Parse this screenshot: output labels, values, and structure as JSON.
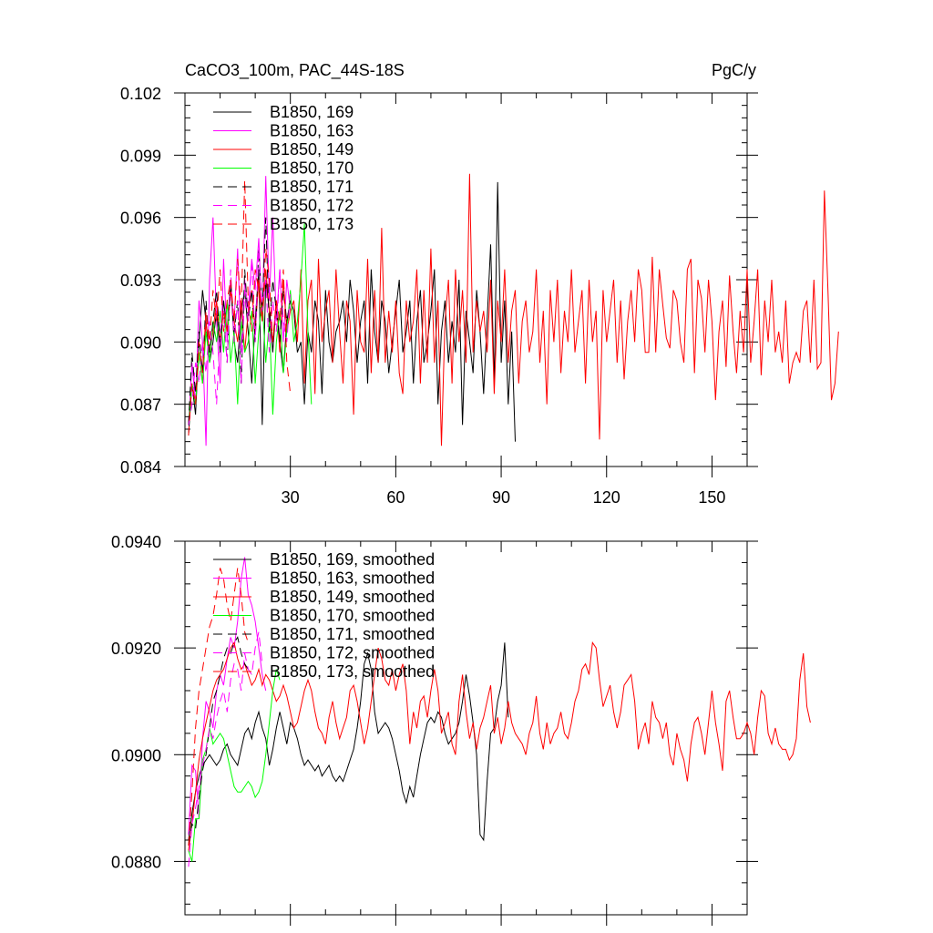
{
  "colors": {
    "black": "#000000",
    "magenta": "#ff00ff",
    "red": "#ff0000",
    "green": "#00ff00"
  },
  "chart_data": [
    {
      "type": "line",
      "title": "CaCO3_100m, PAC_44S-18S",
      "units": "PgC/y",
      "xlim": [
        0,
        160
      ],
      "ylim": [
        0.084,
        0.102
      ],
      "xticks": [
        30,
        60,
        90,
        120,
        150
      ],
      "xtick_labels": [
        "30",
        "60",
        "90",
        "120",
        "150"
      ],
      "yticks": [
        0.084,
        0.087,
        0.09,
        0.093,
        0.096,
        0.099,
        0.102
      ],
      "ytick_labels": [
        "0.084",
        "0.087",
        "0.090",
        "0.093",
        "0.096",
        "0.099",
        "0.102"
      ],
      "series": [
        {
          "name": "B1850, 169",
          "color": "black",
          "dash": false,
          "values": [
            0.0855,
            0.088,
            0.0865,
            0.09,
            0.0925,
            0.091,
            0.089,
            0.09,
            0.0915,
            0.0895,
            0.092,
            0.0905,
            0.093,
            0.09,
            0.089,
            0.0915,
            0.0925,
            0.0905,
            0.088,
            0.091,
            0.0935,
            0.086,
            0.093,
            0.0915,
            0.0895,
            0.092,
            0.09,
            0.0885,
            0.091,
            0.092,
            0.0915,
            0.0895,
            0.09,
            0.087,
            0.0905,
            0.0895,
            0.092,
            0.091,
            0.0875,
            0.0925,
            0.09,
            0.089,
            0.0905,
            0.091,
            0.092,
            0.09,
            0.093,
            0.0915,
            0.089,
            0.091,
            0.092,
            0.088,
            0.0935,
            0.0905,
            0.089,
            0.092,
            0.091,
            0.0885,
            0.09,
            0.0915,
            0.093,
            0.0895,
            0.0905,
            0.092,
            0.088,
            0.091,
            0.0925,
            0.089,
            0.09,
            0.0915,
            0.0935,
            0.087,
            0.0905,
            0.092,
            0.089,
            0.091,
            0.0895,
            0.093,
            0.086,
            0.0915,
            0.09,
            0.0885,
            0.0925,
            0.0905,
            0.0875,
            0.091,
            0.0947,
            0.088,
            0.0977,
            0.089,
            0.092,
            0.087,
            0.0905,
            0.0852
          ]
        },
        {
          "name": "B1850, 163",
          "color": "magenta",
          "dash": false,
          "values": [
            0.086,
            0.089,
            0.087,
            0.092,
            0.09,
            0.085,
            0.093,
            0.096,
            0.091,
            0.088,
            0.094,
            0.09,
            0.0925,
            0.091,
            0.0945,
            0.0895,
            0.093,
            0.0915,
            0.094,
            0.0925,
            0.095,
            0.091,
            0.098,
            0.092,
            0.096,
            0.091,
            0.0935,
            0.09,
            0.093,
            0.0915
          ]
        },
        {
          "name": "B1850, 149",
          "color": "red",
          "dash": false,
          "values": [
            0.086,
            0.088,
            0.087,
            0.0895,
            0.088,
            0.091,
            0.0895,
            0.0905,
            0.092,
            0.09,
            0.0915,
            0.0905,
            0.0925,
            0.091,
            0.09,
            0.092,
            0.0895,
            0.0915,
            0.0925,
            0.0905,
            0.093,
            0.091,
            0.0935,
            0.0915,
            0.09,
            0.092,
            0.0895,
            0.093,
            0.0905,
            0.0915,
            0.092,
            0.09,
            0.0935,
            0.088,
            0.092,
            0.093,
            0.0875,
            0.094,
            0.09,
            0.0915,
            0.0925,
            0.089,
            0.0935,
            0.0905,
            0.088,
            0.092,
            0.091,
            0.0865,
            0.0925,
            0.09,
            0.0895,
            0.094,
            0.0885,
            0.0925,
            0.089,
            0.0955,
            0.089,
            0.0915,
            0.0895,
            0.092,
            0.0885,
            0.0875,
            0.092,
            0.09,
            0.091,
            0.0935,
            0.088,
            0.0925,
            0.089,
            0.0945,
            0.089,
            0.092,
            0.085,
            0.091,
            0.093,
            0.088,
            0.0935,
            0.09,
            0.0925,
            0.089,
            0.0981,
            0.0895,
            0.092,
            0.0905,
            0.0915,
            0.0895,
            0.093,
            0.0875,
            0.092,
            0.09,
            0.0935,
            0.089,
            0.0915,
            0.0925,
            0.088,
            0.091,
            0.092,
            0.0895,
            0.0905,
            0.0935,
            0.089,
            0.0915,
            0.087,
            0.0925,
            0.09,
            0.093,
            0.0885,
            0.0915,
            0.09,
            0.0935,
            0.0895,
            0.091,
            0.0925,
            0.088,
            0.093,
            0.09,
            0.0915,
            0.0853,
            0.0925,
            0.09,
            0.0915,
            0.093,
            0.089,
            0.092,
            0.0882,
            0.091,
            0.0925,
            0.09,
            0.0935,
            0.0925,
            0.0895,
            0.0895,
            0.0941,
            0.0895,
            0.0935,
            0.0918,
            0.0902,
            0.0897,
            0.0925,
            0.092,
            0.09,
            0.089,
            0.0935,
            0.094,
            0.0885,
            0.093,
            0.0921,
            0.0895,
            0.093,
            0.091,
            0.0872,
            0.0905,
            0.092,
            0.0888,
            0.0932,
            0.0905,
            0.0885,
            0.0915,
            0.0895,
            0.0935,
            0.089,
            0.091,
            0.0935,
            0.0884,
            0.092,
            0.09,
            0.093,
            0.0895,
            0.0905,
            0.089,
            0.092,
            0.088,
            0.089,
            0.0895,
            0.089,
            0.0915,
            0.092,
            0.089,
            0.093,
            0.0887,
            0.089,
            0.0973,
            0.0925,
            0.0872,
            0.088,
            0.0905
          ]
        },
        {
          "name": "B1850, 170",
          "color": "green",
          "dash": false,
          "values": [
            0.086,
            0.088,
            0.087,
            0.0895,
            0.088,
            0.0905,
            0.089,
            0.091,
            0.09,
            0.0915,
            0.0895,
            0.092,
            0.089,
            0.0905,
            0.087,
            0.091,
            0.0895,
            0.09,
            0.0915,
            0.088,
            0.0905,
            0.092,
            0.089,
            0.091,
            0.0865,
            0.09,
            0.0915,
            0.0885,
            0.0905,
            0.0925,
            0.09,
            0.091,
            0.093,
            0.0957,
            0.0905,
            0.087
          ]
        },
        {
          "name": "B1850, 171",
          "color": "black",
          "dash": true,
          "values": [
            0.086,
            0.0895,
            0.0875,
            0.0905,
            0.0885,
            0.092,
            0.0895,
            0.091,
            0.0925,
            0.09,
            0.0915,
            0.089,
            0.093,
            0.0905,
            0.092,
            0.088,
            0.0935,
            0.091,
            0.0925,
            0.09,
            0.0945,
            0.0915,
            0.096,
            0.0905,
            0.093,
            0.0915,
            0.09,
            0.0925,
            0.091,
            0.092
          ]
        },
        {
          "name": "B1850, 172",
          "color": "magenta",
          "dash": true,
          "values": [
            0.086,
            0.087,
            0.089,
            0.088,
            0.09,
            0.0885,
            0.091,
            0.0895,
            0.087,
            0.0905,
            0.0915,
            0.089,
            0.0935,
            0.09,
            0.092,
            0.088,
            0.0925,
            0.091,
            0.094,
            0.09,
            0.0945,
            0.0915,
            0.093,
            0.0895,
            0.092,
            0.0905,
            0.0935,
            0.091,
            0.09,
            0.0925
          ]
        },
        {
          "name": "B1850, 173",
          "color": "red",
          "dash": true,
          "values": [
            0.0855,
            0.088,
            0.087,
            0.09,
            0.0885,
            0.0915,
            0.09,
            0.0925,
            0.091,
            0.0935,
            0.0905,
            0.092,
            0.093,
            0.091,
            0.094,
            0.0915,
            0.0978,
            0.092,
            0.0905,
            0.0935,
            0.0925,
            0.091,
            0.0945,
            0.093,
            0.09,
            0.092,
            0.091,
            0.0935,
            0.089,
            0.0875
          ]
        }
      ]
    },
    {
      "type": "line",
      "title": "",
      "units": "",
      "xlim": [
        0,
        160
      ],
      "ylim": [
        0.087,
        0.094
      ],
      "xticks": [
        30,
        60,
        90,
        120,
        150
      ],
      "xtick_labels": [],
      "yticks": [
        0.088,
        0.09,
        0.092,
        0.094
      ],
      "ytick_labels": [
        "0.0880",
        "0.0900",
        "0.0920",
        "0.0940"
      ],
      "series": [
        {
          "name": "B1850, 169, smoothed",
          "color": "black",
          "dash": false,
          "values": [
            0.0884,
            0.0889,
            0.0893,
            0.0896,
            0.0898,
            0.0899,
            0.09,
            0.0899,
            0.0898,
            0.0899,
            0.0901,
            0.0902,
            0.09,
            0.0899,
            0.0898,
            0.0901,
            0.0904,
            0.0905,
            0.0903,
            0.0906,
            0.0908,
            0.0905,
            0.0903,
            0.0898,
            0.0901,
            0.0905,
            0.0908,
            0.0905,
            0.0902,
            0.0906,
            0.0905,
            0.0903,
            0.09,
            0.0898,
            0.0899,
            0.0898,
            0.0897,
            0.0898,
            0.0896,
            0.0897,
            0.0898,
            0.0896,
            0.0895,
            0.0896,
            0.0895,
            0.0897,
            0.0899,
            0.0901,
            0.0905,
            0.091,
            0.0917,
            0.0919,
            0.0916,
            0.0908,
            0.0904,
            0.0905,
            0.0906,
            0.0905,
            0.0903,
            0.09,
            0.0897,
            0.0893,
            0.0891,
            0.0894,
            0.0892,
            0.0896,
            0.09,
            0.0903,
            0.0906,
            0.0907,
            0.0906,
            0.0908,
            0.0907,
            0.0904,
            0.0902,
            0.0903,
            0.0904,
            0.0906,
            0.091,
            0.0915,
            0.0911,
            0.0906,
            0.09,
            0.0885,
            0.0884,
            0.0895,
            0.0904,
            0.0905,
            0.091,
            0.0913,
            0.0921,
            0.0907
          ]
        },
        {
          "name": "B1850, 163, smoothed",
          "color": "magenta",
          "dash": false,
          "values": [
            0.0885,
            0.0898,
            0.0897,
            0.0888,
            0.0903,
            0.091,
            0.0908,
            0.0905,
            0.0912,
            0.0915,
            0.0913,
            0.0918,
            0.0922,
            0.092,
            0.0925,
            0.0933,
            0.0937,
            0.093,
            0.0928,
            0.0925,
            0.092,
            0.0915,
            0.0912
          ]
        },
        {
          "name": "B1850, 149, smoothed",
          "color": "red",
          "dash": false,
          "values": [
            0.0882,
            0.0887,
            0.0893,
            0.0899,
            0.0903,
            0.0906,
            0.0909,
            0.0912,
            0.0914,
            0.0915,
            0.0916,
            0.0918,
            0.092,
            0.0921,
            0.0918,
            0.0916,
            0.0917,
            0.0915,
            0.0913,
            0.0914,
            0.0916,
            0.0913,
            0.0915,
            0.0914,
            0.0912,
            0.091,
            0.0911,
            0.0913,
            0.0911,
            0.0908,
            0.0905,
            0.0906,
            0.0909,
            0.0912,
            0.0914,
            0.0912,
            0.0908,
            0.0905,
            0.0904,
            0.0902,
            0.0907,
            0.091,
            0.0906,
            0.0903,
            0.0905,
            0.0907,
            0.0912,
            0.0913,
            0.091,
            0.0906,
            0.0902,
            0.0905,
            0.091,
            0.0915,
            0.092,
            0.0918,
            0.0914,
            0.0913,
            0.0916,
            0.0912,
            0.0915,
            0.0917,
            0.0912,
            0.0902,
            0.0908,
            0.0905,
            0.091,
            0.0911,
            0.0907,
            0.0912,
            0.0916,
            0.0912,
            0.0904,
            0.0906,
            0.0908,
            0.0902,
            0.09,
            0.091,
            0.0915,
            0.0908,
            0.0903,
            0.0906,
            0.0901,
            0.0905,
            0.0907,
            0.091,
            0.0913,
            0.0904,
            0.0907,
            0.0902,
            0.0905,
            0.091,
            0.0906,
            0.0904,
            0.0903,
            0.0902,
            0.09,
            0.0904,
            0.0906,
            0.0911,
            0.0904,
            0.0901,
            0.0906,
            0.0902,
            0.0904,
            0.0905,
            0.0908,
            0.0904,
            0.0903,
            0.0906,
            0.091,
            0.0912,
            0.0916,
            0.0917,
            0.0915,
            0.0921,
            0.092,
            0.0914,
            0.0909,
            0.0911,
            0.0913,
            0.0908,
            0.0905,
            0.0908,
            0.0913,
            0.0914,
            0.0915,
            0.091,
            0.0901,
            0.0904,
            0.0906,
            0.0902,
            0.091,
            0.0907,
            0.0906,
            0.0903,
            0.0906,
            0.09,
            0.0898,
            0.0904,
            0.0901,
            0.0899,
            0.0895,
            0.0902,
            0.0906,
            0.0907,
            0.0904,
            0.09,
            0.0906,
            0.0912,
            0.0906,
            0.0902,
            0.0897,
            0.091,
            0.0912,
            0.0907,
            0.0903,
            0.0903,
            0.0904,
            0.0906,
            0.0904,
            0.09,
            0.0907,
            0.0912,
            0.0911,
            0.0904,
            0.0902,
            0.0905,
            0.0902,
            0.0901,
            0.0901,
            0.0899,
            0.09,
            0.0903,
            0.0914,
            0.0919,
            0.0909,
            0.0906
          ]
        },
        {
          "name": "B1850, 170, smoothed",
          "color": "green",
          "dash": false,
          "values": [
            0.0882,
            0.088,
            0.0888,
            0.0888,
            0.0899,
            0.0901,
            0.0905,
            0.0902,
            0.0903,
            0.0904,
            0.0903,
            0.09,
            0.0897,
            0.0894,
            0.0893,
            0.0893,
            0.0894,
            0.0895,
            0.0894,
            0.0892,
            0.0893,
            0.0895,
            0.09,
            0.0906,
            0.0912,
            0.0916,
            0.0914
          ]
        },
        {
          "name": "B1850, 171, smoothed",
          "color": "black",
          "dash": true,
          "values": [
            0.0883,
            0.0887,
            0.0886,
            0.0892,
            0.0897,
            0.09,
            0.0905,
            0.091,
            0.0912,
            0.0915,
            0.0918,
            0.092,
            0.0919,
            0.0921,
            0.0922,
            0.0919,
            0.0917,
            0.0916,
            0.0915
          ]
        },
        {
          "name": "B1850, 172, smoothed",
          "color": "magenta",
          "dash": true,
          "values": [
            0.0879,
            0.0887,
            0.089,
            0.0894,
            0.0898,
            0.0901,
            0.0905,
            0.0903,
            0.0907,
            0.091,
            0.0912,
            0.0908,
            0.0914,
            0.0917,
            0.0916,
            0.0912,
            0.0919,
            0.0916,
            0.0915,
            0.092,
            0.0923,
            0.0917
          ]
        },
        {
          "name": "B1850, 173, smoothed",
          "color": "red",
          "dash": true,
          "values": [
            0.0883,
            0.0893,
            0.0905,
            0.0912,
            0.0916,
            0.092,
            0.0924,
            0.0926,
            0.093,
            0.0935,
            0.0933,
            0.0928,
            0.0925,
            0.093,
            0.0935,
            0.093,
            0.0923,
            0.0921
          ]
        }
      ]
    }
  ]
}
